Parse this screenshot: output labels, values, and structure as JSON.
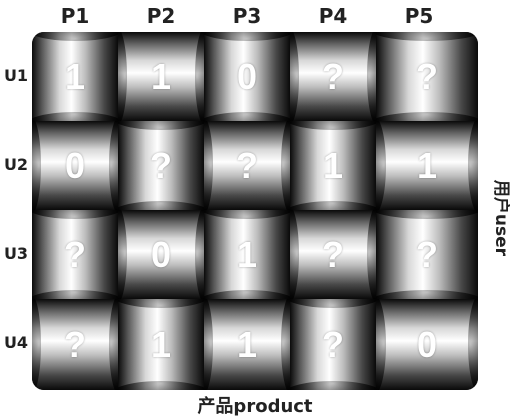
{
  "columns": [
    "P1",
    "P2",
    "P3",
    "P4",
    "P5"
  ],
  "rows": [
    "U1",
    "U2",
    "U3",
    "U4"
  ],
  "matrix": [
    [
      "1",
      "1",
      "0",
      "?",
      "?"
    ],
    [
      "0",
      "?",
      "?",
      "1",
      "1"
    ],
    [
      "?",
      "0",
      "1",
      "?",
      "?"
    ],
    [
      "?",
      "1",
      "1",
      "?",
      "0"
    ]
  ],
  "labels": {
    "x_axis": "产品product",
    "y_axis": "用户user"
  }
}
